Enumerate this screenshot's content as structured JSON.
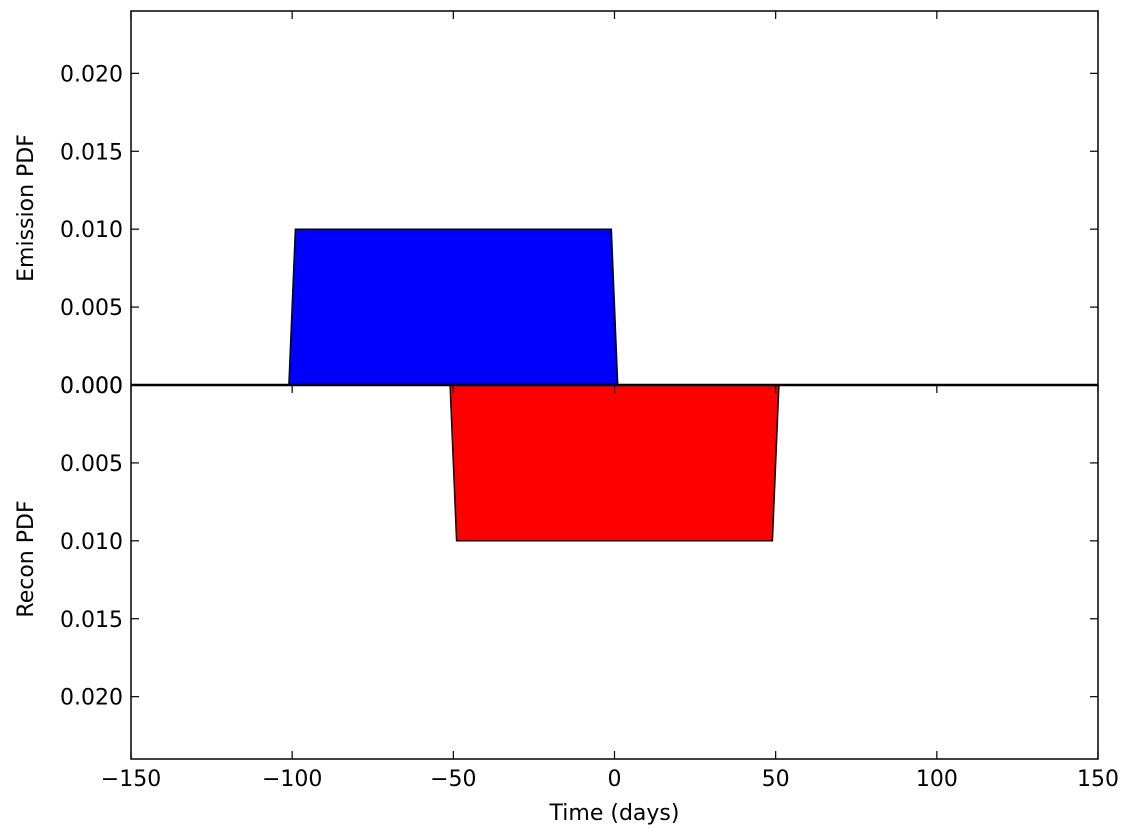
{
  "chart_data": {
    "type": "area",
    "xlabel": "Time (days)",
    "ylabel_top": "Emission PDF",
    "ylabel_bottom": "Recon PDF",
    "xlim": [
      -150,
      150
    ],
    "ylim": [
      -0.024,
      0.024
    ],
    "x_ticks": [
      -150,
      -100,
      -50,
      0,
      50,
      100,
      150
    ],
    "x_tick_labels": [
      "−150",
      "−100",
      "−50",
      "0",
      "50",
      "100",
      "150"
    ],
    "y_ticks_top": [
      0.0,
      0.005,
      0.01,
      0.015,
      0.02
    ],
    "y_tick_labels_top": [
      "0.000",
      "0.005",
      "0.010",
      "0.015",
      "0.020"
    ],
    "y_ticks_bottom": [
      0.0,
      0.005,
      0.01,
      0.015,
      0.02
    ],
    "y_tick_labels_bottom": [
      "0.000",
      "0.005",
      "0.010",
      "0.015",
      "0.020"
    ],
    "grid": false,
    "series": [
      {
        "region": "emission",
        "color": "#0000ff",
        "x": [
          -101,
          -99,
          -1,
          1
        ],
        "y": [
          0,
          0.01,
          0.01,
          0
        ]
      },
      {
        "region": "recon",
        "color": "#ff0000",
        "x": [
          -51,
          -49,
          49,
          51
        ],
        "y": [
          0,
          0.01,
          0.01,
          0
        ]
      }
    ]
  }
}
